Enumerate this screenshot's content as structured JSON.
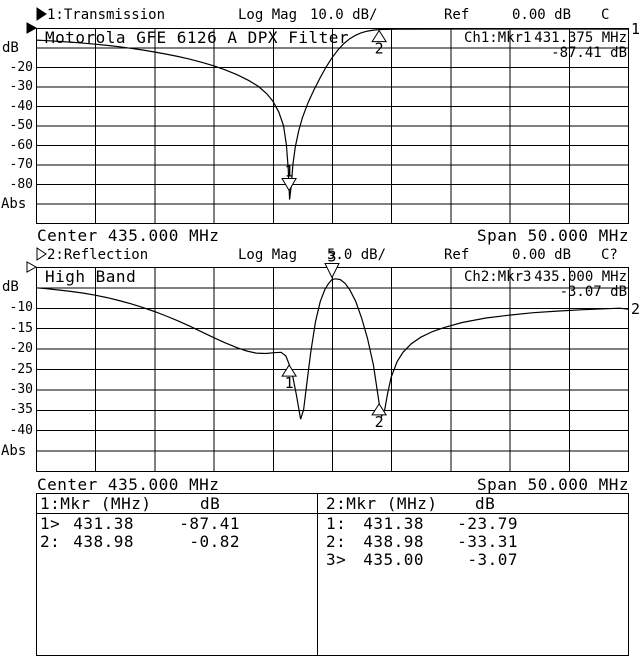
{
  "header1": {
    "channel_arrow": "filled",
    "channel_label": "1:Transmission",
    "format_label": "Log Mag",
    "scale_value": "10.0 dB/",
    "ref_label": "Ref",
    "ref_value": "0.00 dB",
    "cal_status": "C"
  },
  "header2": {
    "channel_arrow": "open",
    "channel_label": "2:Reflection",
    "format_label": "Log Mag",
    "scale_value": "5.0 dB/",
    "ref_label": "Ref",
    "ref_value": "0.00 dB",
    "cal_status": "C?"
  },
  "chart1_readout": {
    "channel_marker": "Ch1:Mkr1",
    "freq": "431.375 MHz",
    "value": "-87.41 dB"
  },
  "chart2_readout": {
    "channel_marker": "Ch2:Mkr3",
    "freq": "435.000 MHz",
    "value": "-3.07 dB"
  },
  "footer1": {
    "center": "Center 435.000 MHz",
    "span": "Span 50.000 MHz"
  },
  "footer2": {
    "center": "Center 435.000 MHz",
    "span": "Span 50.000 MHz"
  },
  "axis": {
    "unit_label": "dB",
    "abs_label": "Abs"
  },
  "marker_table": {
    "left": {
      "header_mkr": "1:Mkr (MHz)",
      "header_unit": "dB",
      "rows": [
        {
          "id": "1>",
          "freq": "431.38",
          "db": "-87.41"
        },
        {
          "id": "2:",
          "freq": "438.98",
          "db": "-0.82"
        }
      ]
    },
    "right": {
      "header_mkr": "2:Mkr (MHz)",
      "header_unit": "dB",
      "rows": [
        {
          "id": "1:",
          "freq": "431.38",
          "db": "-23.79"
        },
        {
          "id": "2:",
          "freq": "438.98",
          "db": "-33.31"
        },
        {
          "id": "3>",
          "freq": "435.00",
          "db": "-3.07"
        }
      ]
    }
  },
  "chart_data": [
    {
      "type": "line",
      "name": "channel1-transmission",
      "title": "Motorola GFE 6126 A DPX Filter",
      "x_range_mhz": [
        410,
        460
      ],
      "center_mhz": 435.0,
      "span_mhz": 50.0,
      "y_ref_db": 0.0,
      "y_db_per_div": 10.0,
      "y_range_db": [
        0,
        -100
      ],
      "grid": "10x10",
      "y_tick_labels": [
        "-20",
        "-30",
        "-40",
        "-50",
        "-60",
        "-70",
        "-80"
      ],
      "trace_end_label": "1",
      "markers": [
        {
          "n": "1",
          "mhz": 431.375,
          "db": -87.41,
          "style": "above"
        },
        {
          "n": "2",
          "mhz": 438.98,
          "db": -0.82,
          "style": "below"
        }
      ],
      "points": [
        [
          410,
          -6.2
        ],
        [
          411,
          -6.5
        ],
        [
          412,
          -6.9
        ],
        [
          413,
          -7.3
        ],
        [
          414,
          -7.8
        ],
        [
          415,
          -8.3
        ],
        [
          416,
          -8.9
        ],
        [
          417,
          -9.6
        ],
        [
          418,
          -10.4
        ],
        [
          419,
          -11.3
        ],
        [
          420,
          -12.3
        ],
        [
          421,
          -13.4
        ],
        [
          422,
          -14.6
        ],
        [
          423,
          -16
        ],
        [
          424,
          -17.6
        ],
        [
          425,
          -19.4
        ],
        [
          426,
          -21.5
        ],
        [
          427,
          -24
        ],
        [
          428,
          -27
        ],
        [
          428.8,
          -30
        ],
        [
          429.5,
          -33.8
        ],
        [
          430,
          -37.5
        ],
        [
          430.5,
          -43
        ],
        [
          430.9,
          -50
        ],
        [
          431.15,
          -60
        ],
        [
          431.3,
          -72
        ],
        [
          431.42,
          -88
        ],
        [
          431.55,
          -81
        ],
        [
          431.7,
          -70
        ],
        [
          431.9,
          -61
        ],
        [
          432.2,
          -52.5
        ],
        [
          432.5,
          -46
        ],
        [
          433,
          -38
        ],
        [
          433.5,
          -31.5
        ],
        [
          434,
          -25.5
        ],
        [
          434.5,
          -20
        ],
        [
          435,
          -15.3
        ],
        [
          435.5,
          -11.3
        ],
        [
          436,
          -8
        ],
        [
          436.5,
          -5.5
        ],
        [
          437,
          -3.7
        ],
        [
          437.5,
          -2.4
        ],
        [
          438,
          -1.6
        ],
        [
          438.5,
          -1.1
        ],
        [
          438.98,
          -0.82
        ],
        [
          439.5,
          -0.7
        ],
        [
          440.5,
          -0.6
        ],
        [
          442,
          -0.55
        ],
        [
          445,
          -0.5
        ],
        [
          450,
          -0.5
        ],
        [
          455,
          -0.5
        ],
        [
          460,
          -0.55
        ]
      ]
    },
    {
      "type": "line",
      "name": "channel2-reflection",
      "title": "High Band",
      "x_range_mhz": [
        410,
        460
      ],
      "center_mhz": 435.0,
      "span_mhz": 50.0,
      "y_ref_db": 0.0,
      "y_db_per_div": 5.0,
      "y_range_db": [
        0,
        -50
      ],
      "grid": "10x10",
      "y_tick_labels": [
        "-10",
        "-15",
        "-20",
        "-25",
        "-30",
        "-35",
        "-40"
      ],
      "trace_end_label": "2",
      "markers": [
        {
          "n": "1",
          "mhz": 431.38,
          "db": -23.79,
          "style": "below"
        },
        {
          "n": "2",
          "mhz": 438.98,
          "db": -33.31,
          "style": "below"
        },
        {
          "n": "3",
          "mhz": 435.0,
          "db": -3.07,
          "style": "top"
        }
      ],
      "points": [
        [
          410,
          -5.1
        ],
        [
          411,
          -5.35
        ],
        [
          412,
          -5.65
        ],
        [
          413,
          -6
        ],
        [
          414,
          -6.4
        ],
        [
          415,
          -6.9
        ],
        [
          416,
          -7.5
        ],
        [
          417,
          -8.2
        ],
        [
          418,
          -9
        ],
        [
          419,
          -9.9
        ],
        [
          420,
          -10.9
        ],
        [
          421,
          -12
        ],
        [
          422,
          -13.2
        ],
        [
          423,
          -14.5
        ],
        [
          424,
          -15.9
        ],
        [
          425,
          -17.3
        ],
        [
          426,
          -18.6
        ],
        [
          427,
          -19.8
        ],
        [
          427.8,
          -20.6
        ],
        [
          428.6,
          -21.1
        ],
        [
          429.4,
          -21.2
        ],
        [
          430.1,
          -21
        ],
        [
          430.7,
          -20.9
        ],
        [
          431.1,
          -21.8
        ],
        [
          431.38,
          -23.79
        ],
        [
          431.7,
          -27
        ],
        [
          432,
          -31.5
        ],
        [
          432.35,
          -37.3
        ],
        [
          432.6,
          -35
        ],
        [
          432.9,
          -28
        ],
        [
          433.2,
          -21
        ],
        [
          433.6,
          -13.5
        ],
        [
          434,
          -8.5
        ],
        [
          434.4,
          -5.5
        ],
        [
          434.7,
          -4.1
        ],
        [
          435,
          -3.07
        ],
        [
          435.3,
          -2.9
        ],
        [
          435.7,
          -3.1
        ],
        [
          436.1,
          -4
        ],
        [
          436.5,
          -5.6
        ],
        [
          437,
          -8.4
        ],
        [
          437.5,
          -12.5
        ],
        [
          438,
          -17.5
        ],
        [
          438.5,
          -24
        ],
        [
          438.98,
          -33.31
        ],
        [
          439.2,
          -36.6
        ],
        [
          439.45,
          -35
        ],
        [
          439.7,
          -31
        ],
        [
          440,
          -27
        ],
        [
          440.5,
          -23.2
        ],
        [
          441,
          -20.9
        ],
        [
          441.7,
          -18.8
        ],
        [
          442.5,
          -17.2
        ],
        [
          443.5,
          -15.8
        ],
        [
          444.5,
          -14.8
        ],
        [
          446,
          -13.6
        ],
        [
          448,
          -12.5
        ],
        [
          450,
          -11.8
        ],
        [
          452,
          -11.2
        ],
        [
          454,
          -10.8
        ],
        [
          456,
          -10.5
        ],
        [
          458,
          -10.25
        ],
        [
          459.3,
          -10.1
        ],
        [
          460,
          -10.35
        ]
      ]
    }
  ]
}
